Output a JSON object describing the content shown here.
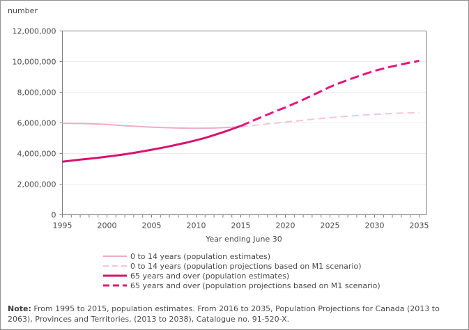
{
  "chart": {
    "unit_label": "number",
    "x_axis_title": "Year ending June 30"
  },
  "note": {
    "label": "Note:",
    "text": "From 1995 to 2015, population estimates. From 2016 to 2035, Population Projections for Canada (2013 to 2063), Provinces and Territories, (2013 to 2038), Catalogue no. 91-520-X."
  },
  "colors": {
    "axis": "#7b7b7b",
    "grid": "#ececec",
    "text": "#4a4a4a",
    "background": "#ffffff",
    "frame_border": "#8f8f8f"
  },
  "chart_data": {
    "type": "line",
    "title": "",
    "xlabel": "Year ending June 30",
    "ylabel": "number",
    "xlim": [
      1995,
      2035
    ],
    "ylim": [
      0,
      12000000
    ],
    "x_ticks_labeled": [
      1995,
      2000,
      2005,
      2010,
      2015,
      2020,
      2025,
      2030,
      2035
    ],
    "x_minor_tick_step": 1,
    "y_ticks": [
      0,
      2000000,
      4000000,
      6000000,
      8000000,
      10000000,
      12000000
    ],
    "grid": true,
    "legend_position": "bottom-left",
    "series": [
      {
        "name": "0 to 14 years (population estimates)",
        "style": "solid",
        "color": "#efacc8",
        "width": 2,
        "x_start": 1995,
        "x_step": 1,
        "values": [
          5970000,
          5970000,
          5960000,
          5945000,
          5925000,
          5895000,
          5855000,
          5815000,
          5780000,
          5750000,
          5725000,
          5700000,
          5680000,
          5665000,
          5655000,
          5650000,
          5655000,
          5665000,
          5685000,
          5715000,
          5750000
        ]
      },
      {
        "name": "0 to 14 years (population projections based on M1 scenario)",
        "style": "dashed",
        "color": "#f5c4d8",
        "width": 2,
        "x_start": 2015,
        "x_step": 1,
        "values": [
          5750000,
          5810000,
          5870000,
          5930000,
          5990000,
          6050000,
          6110000,
          6170000,
          6230000,
          6285000,
          6340000,
          6390000,
          6440000,
          6480000,
          6520000,
          6555000,
          6585000,
          6615000,
          6640000,
          6655000,
          6670000
        ]
      },
      {
        "name": "65 years and over (population estimates)",
        "style": "solid",
        "color": "#d4156f",
        "width": 3,
        "x_start": 1995,
        "x_step": 1,
        "values": [
          3470000,
          3535000,
          3600000,
          3660000,
          3725000,
          3795000,
          3870000,
          3950000,
          4040000,
          4140000,
          4245000,
          4355000,
          4470000,
          4595000,
          4725000,
          4870000,
          5020000,
          5200000,
          5390000,
          5590000,
          5800000
        ]
      },
      {
        "name": "65 years and over (population projections based on M1 scenario)",
        "style": "dashed",
        "color": "#e2187d",
        "width": 3,
        "x_start": 2015,
        "x_step": 1,
        "values": [
          5800000,
          6050000,
          6300000,
          6540000,
          6780000,
          7010000,
          7260000,
          7520000,
          7790000,
          8070000,
          8350000,
          8580000,
          8800000,
          9010000,
          9210000,
          9400000,
          9550000,
          9690000,
          9820000,
          9940000,
          10050000
        ]
      }
    ]
  }
}
